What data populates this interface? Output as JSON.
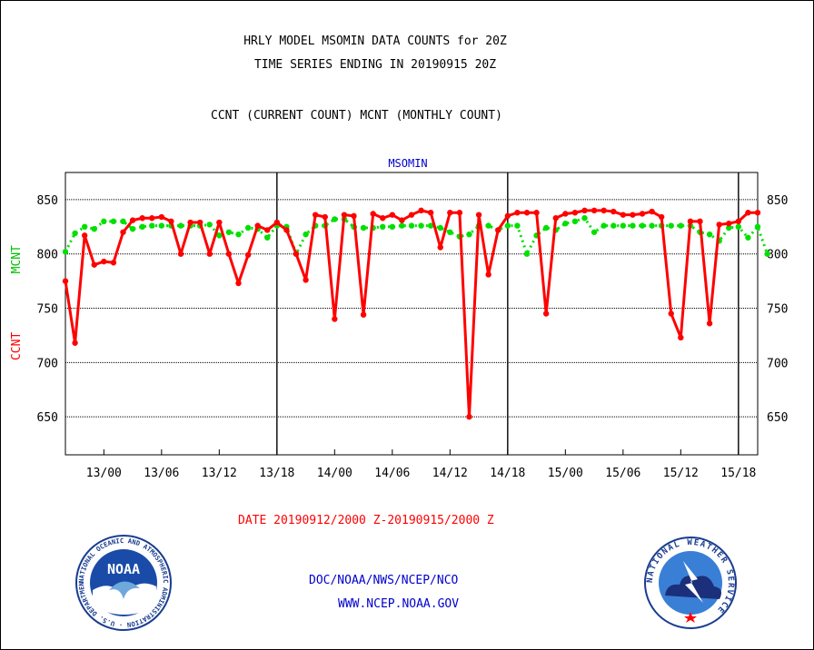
{
  "chart_data": {
    "type": "line",
    "title": "HRLY MODEL MSOMIN DATA COUNTS for 20Z",
    "subtitle_line": "TIME SERIES ENDING IN 20190915 20Z",
    "legend_text": "CCNT (CURRENT COUNT) MCNT (MONTHLY COUNT)",
    "panel_label": "MSOMIN",
    "ylabel_left": "CCNT",
    "ylabel_left2": "MCNT",
    "xlabel": "DATE 20190912/2000 Z-20190915/2000 Z",
    "ylim": [
      615,
      875
    ],
    "xlim": [
      0,
      72
    ],
    "yticks": [
      650,
      700,
      750,
      800,
      850
    ],
    "xtick_labels": [
      "13/00",
      "13/06",
      "13/12",
      "13/18",
      "14/00",
      "14/06",
      "14/12",
      "14/18",
      "15/00",
      "15/06",
      "15/12",
      "15/18"
    ],
    "xtick_hours": [
      4,
      10,
      16,
      22,
      28,
      34,
      40,
      46,
      52,
      58,
      64,
      70
    ],
    "day_dividers_hours": [
      22,
      46,
      70
    ],
    "grid": "horizontal",
    "series": [
      {
        "name": "CCNT",
        "color": "#ff0000",
        "style": "solid",
        "values": [
          775,
          718,
          817,
          790,
          793,
          792,
          820,
          831,
          833,
          833,
          834,
          830,
          800,
          829,
          829,
          800,
          829,
          800,
          773,
          799,
          826,
          822,
          829,
          822,
          800,
          776,
          836,
          834,
          740,
          836,
          835,
          744,
          837,
          833,
          836,
          831,
          836,
          840,
          838,
          806,
          838,
          838,
          650,
          836,
          781,
          822,
          835,
          838,
          838,
          838,
          745,
          833,
          837,
          838,
          840,
          840,
          840,
          839,
          836,
          836,
          837,
          839,
          834,
          745,
          723,
          830,
          830,
          736,
          827,
          828,
          830,
          838,
          838
        ]
      },
      {
        "name": "MCNT",
        "color": "#00e000",
        "style": "dotted",
        "values": [
          802,
          819,
          825,
          823,
          830,
          830,
          830,
          823,
          825,
          826,
          826,
          826,
          826,
          826,
          826,
          827,
          817,
          820,
          818,
          824,
          823,
          815,
          826,
          825,
          800,
          818,
          826,
          826,
          832,
          832,
          825,
          824,
          824,
          825,
          825,
          826,
          826,
          826,
          826,
          824,
          820,
          816,
          818,
          826,
          826,
          822,
          826,
          826,
          800,
          817,
          824,
          822,
          828,
          830,
          833,
          820,
          826,
          826,
          826,
          826,
          826,
          826,
          826,
          826,
          826,
          826,
          820,
          818,
          812,
          824,
          825,
          815,
          825,
          800
        ]
      }
    ]
  },
  "footer": {
    "org": "DOC/NOAA/NWS/NCEP/NCO",
    "url": "WWW.NCEP.NOAA.GOV"
  },
  "logos": {
    "left": {
      "text": "NOAA",
      "ring_text": "NATIONAL OCEANIC AND ATMOSPHERIC ADMINISTRATION · U.S. DEPARTMENT OF COMMERCE"
    },
    "right": {
      "ring_text": "NATIONAL WEATHER SERVICE"
    }
  }
}
